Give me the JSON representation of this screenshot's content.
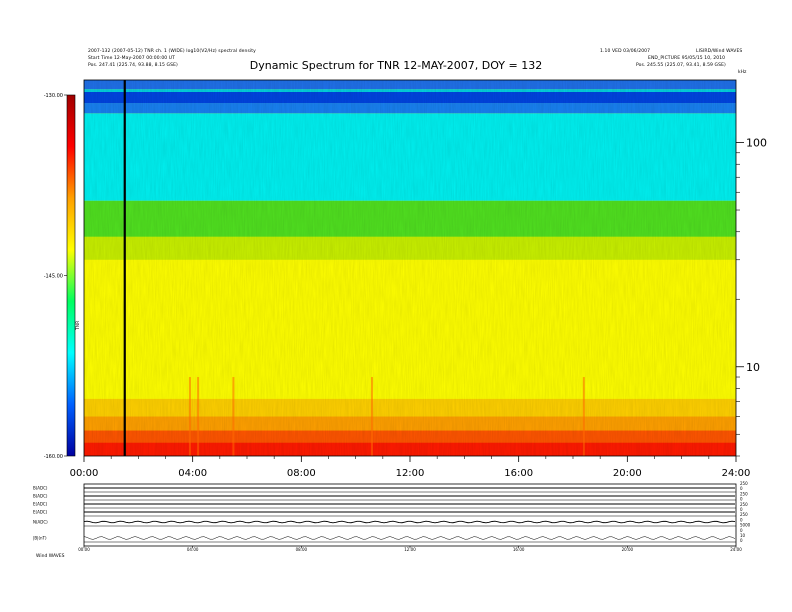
{
  "chart_data": {
    "type": "heatmap",
    "title": "Dynamic Spectrum for TNR 12-MAY-2007, DOY = 132",
    "header_lines": {
      "left_1": "2007-132 (2007-05-12) TNR ch. 1 (WIDE) log10(V2/Hz) spectral density",
      "left_2": "Start Time 12-May-2007 00:00:00 UT",
      "left_3": "Pos.  247.41 (225.74, 93.88, 8.15 GSE)",
      "right_1": "1.10 VED 03/06/2007",
      "right_2": "END_PICTURE 95/05/15 10, 2010",
      "right_3": "Pos.  245.55 (225.07, 93.41, 8.59 GSE)",
      "right_top": "LISIRD/Wind WAVES"
    },
    "x_axis": {
      "tick_labels": [
        "00:00",
        "04:00",
        "08:00",
        "12:00",
        "16:00",
        "20:00",
        "24:00"
      ],
      "range_hours": [
        0,
        24
      ]
    },
    "y_axis_right": {
      "unit": "kHz",
      "scale": "log",
      "range": [
        4,
        190
      ],
      "tick_labels": [
        "100",
        "10"
      ],
      "tick_values": [
        100,
        10
      ]
    },
    "colorbar": {
      "label": "TNR",
      "range": [
        -160,
        -130
      ],
      "tick_labels": [
        "-130.00",
        "-145.00",
        "-160.00"
      ],
      "tick_values": [
        -130,
        -145,
        -160
      ],
      "colors": [
        "#0000a0",
        "#0060ff",
        "#00ffff",
        "#00ff60",
        "#ffff00",
        "#ffa000",
        "#ff0000",
        "#a00000"
      ]
    },
    "vertical_marker_hours": 1.5,
    "frequency_bands": [
      {
        "f_low": 4,
        "f_high": 4.6,
        "value": -131,
        "color": "#ff1a00"
      },
      {
        "f_low": 4.6,
        "f_high": 5.2,
        "value": -133,
        "color": "#ff5500"
      },
      {
        "f_low": 5.2,
        "f_high": 6.0,
        "value": -135,
        "color": "#ffa000"
      },
      {
        "f_low": 6.0,
        "f_high": 7.2,
        "value": -137,
        "color": "#ffd000"
      },
      {
        "f_low": 7.2,
        "f_high": 30,
        "value": -139,
        "color": "#ffff00"
      },
      {
        "f_low": 30,
        "f_high": 38,
        "value": -142,
        "color": "#c8f000"
      },
      {
        "f_low": 38,
        "f_high": 55,
        "value": -147,
        "color": "#50e020"
      },
      {
        "f_low": 55,
        "f_high": 135,
        "value": -152,
        "color": "#00f0f0"
      },
      {
        "f_low": 135,
        "f_high": 150,
        "value": -154,
        "color": "#1880f0"
      },
      {
        "f_low": 150,
        "f_high": 168,
        "value": -157,
        "color": "#0044e0"
      },
      {
        "f_low": 168,
        "f_high": 173,
        "value": -153,
        "color": "#00d0e0"
      },
      {
        "f_low": 173,
        "f_high": 190,
        "value": -156,
        "color": "#2070e8"
      }
    ],
    "bursts_hours": [
      3.9,
      4.2,
      5.5,
      10.6,
      18.4
    ]
  },
  "bottom_panel": {
    "row_labels": [
      "B(ADC)",
      "B(ADC)",
      "E(ADC)",
      "E(ADC)",
      "N(ADC)",
      "|B|(nT)"
    ],
    "right_labels": [
      "250",
      "0",
      "250",
      "0",
      "250",
      "0",
      "250",
      "0",
      "5000",
      "0",
      "10",
      "0"
    ],
    "x_tick_labels": [
      "00:00",
      "04:00",
      "08:00",
      "12:00",
      "16:00",
      "20:00",
      "24:00"
    ],
    "footer_left": "Wind   WAVES"
  }
}
